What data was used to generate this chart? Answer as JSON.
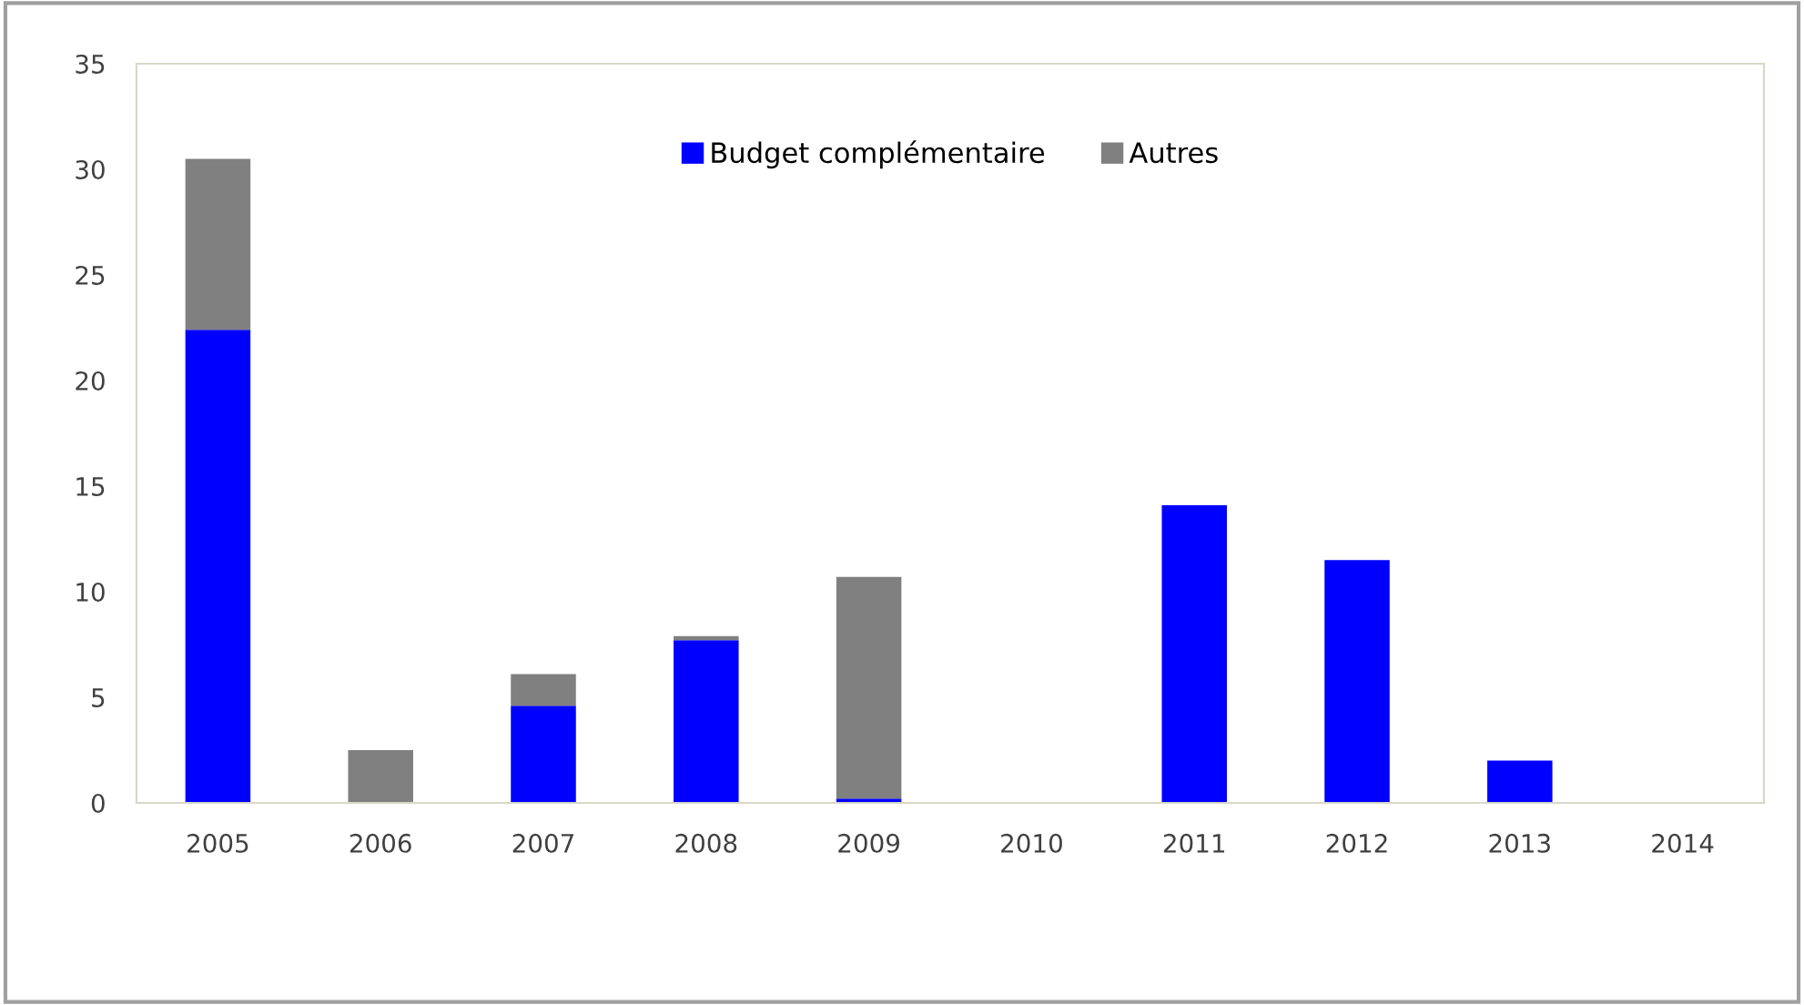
{
  "chart_data": {
    "type": "bar",
    "stacked": true,
    "categories": [
      "2005",
      "2006",
      "2007",
      "2008",
      "2009",
      "2010",
      "2011",
      "2012",
      "2013",
      "2014"
    ],
    "series": [
      {
        "name": "Budget complémentaire",
        "color": "#0000ff",
        "values": [
          22.4,
          0,
          4.6,
          7.7,
          0.2,
          0,
          14.1,
          11.5,
          2.0,
          0
        ]
      },
      {
        "name": "Autres",
        "color": "#808080",
        "values": [
          8.1,
          2.5,
          1.5,
          0.2,
          10.5,
          0,
          0,
          0,
          0,
          0
        ]
      }
    ],
    "ylim": [
      0,
      35
    ],
    "yticks": [
      0,
      5,
      10,
      15,
      20,
      25,
      30,
      35
    ],
    "grid": false,
    "legend": "top"
  }
}
